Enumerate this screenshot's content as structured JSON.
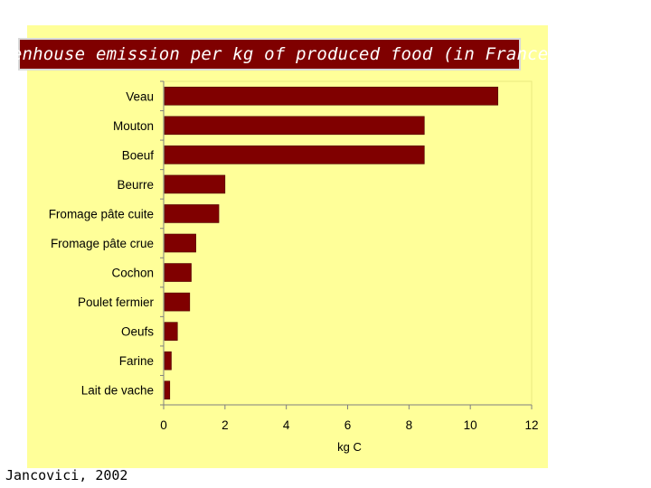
{
  "header": {
    "title": "Greenhouse emission per kg of produced food (in France)"
  },
  "footer": {
    "source": "Jancovici, 2002"
  },
  "colors": {
    "bar": "#800000",
    "panel": "#ffff99",
    "title_bg": "#7f0000"
  },
  "chart_data": {
    "type": "bar",
    "orientation": "horizontal",
    "categories": [
      "Veau",
      "Mouton",
      "Boeuf",
      "Beurre",
      "Fromage pâte cuite",
      "Fromage pâte crue",
      "Cochon",
      "Poulet fermier",
      "Oeufs",
      "Farine",
      "Lait de vache"
    ],
    "values": [
      10.9,
      8.5,
      8.5,
      2.0,
      1.8,
      1.05,
      0.9,
      0.85,
      0.45,
      0.25,
      0.2
    ],
    "title": "Greenhouse emission per kg of produced food (in France)",
    "xlabel": "kg C",
    "ylabel": "",
    "xlim": [
      0,
      12
    ],
    "xticks": [
      0,
      2,
      4,
      6,
      8,
      10,
      12
    ],
    "grid": false,
    "legend": "none"
  }
}
